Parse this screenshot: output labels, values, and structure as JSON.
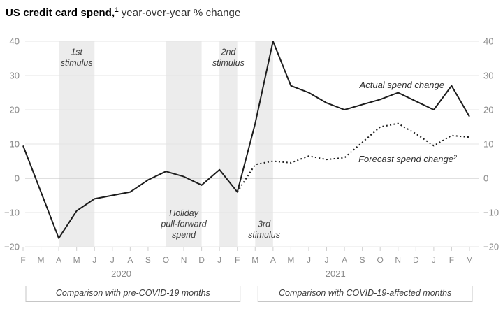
{
  "title": {
    "bold": "US credit card spend,",
    "sup": "1",
    "regular": "year-over-year % change"
  },
  "colors": {
    "actual_line": "#1c1c1c",
    "forecast_line": "#1c1c1c",
    "grid": "#e4e4e4",
    "zero_line": "#c2c2c2",
    "band_fill": "#ececec",
    "axis_text": "#8a8a8a",
    "annotation_text": "#3d3d3d",
    "bracket": "#c6c6c6",
    "tick": "#cfcfcf"
  },
  "chart_data": {
    "type": "line",
    "title": "US credit card spend, year-over-year % change",
    "xlabel": "",
    "ylabel": "% change year-over-year",
    "ylim": [
      -20,
      40
    ],
    "yticks": [
      40,
      30,
      20,
      10,
      0,
      -10,
      -20
    ],
    "grid": true,
    "legend_position": "inline-labels",
    "x_months": [
      "F",
      "M",
      "A",
      "M",
      "J",
      "J",
      "A",
      "S",
      "O",
      "N",
      "D",
      "J",
      "F",
      "M",
      "A",
      "M",
      "J",
      "J",
      "A",
      "S",
      "O",
      "N",
      "D",
      "J",
      "F",
      "M"
    ],
    "years": [
      {
        "label": "2020",
        "center_index": 5.5
      },
      {
        "label": "2021",
        "center_index": 17.5
      }
    ],
    "series": [
      {
        "name": "Actual spend change",
        "name_sup": "",
        "style": "solid",
        "values": [
          9.5,
          -4,
          -17.5,
          -9.5,
          -6,
          -5,
          -4,
          -0.5,
          2,
          0.5,
          -2,
          2.5,
          -4,
          16,
          40,
          27,
          25,
          22,
          20,
          21.5,
          23,
          25,
          22.5,
          20,
          27,
          18
        ]
      },
      {
        "name": "Forecast spend change",
        "name_sup": "2",
        "style": "dotted",
        "values": [
          null,
          null,
          null,
          null,
          null,
          null,
          null,
          null,
          null,
          null,
          null,
          null,
          -4,
          4,
          5,
          4.5,
          6.5,
          5.5,
          6,
          10.5,
          15,
          16,
          13,
          9.5,
          12.5,
          12
        ]
      }
    ],
    "bands": [
      {
        "label_lines": [
          "1st",
          "stimulus"
        ],
        "from": 2,
        "to": 4,
        "label_pos": "top"
      },
      {
        "label_lines": [
          "Holiday",
          "pull-forward",
          "spend"
        ],
        "from": 8,
        "to": 10,
        "label_pos": "bottom"
      },
      {
        "label_lines": [
          "2nd",
          "stimulus"
        ],
        "from": 11,
        "to": 12,
        "label_pos": "top"
      },
      {
        "label_lines": [
          "3rd",
          "stimulus"
        ],
        "from": 13,
        "to": 14,
        "label_pos": "bottom"
      }
    ],
    "brackets": [
      {
        "label": "Comparison with pre-COVID-19 months",
        "from": 0,
        "to": 12
      },
      {
        "label": "Comparison with COVID-19-affected months",
        "from": 13,
        "to": 25
      }
    ]
  }
}
